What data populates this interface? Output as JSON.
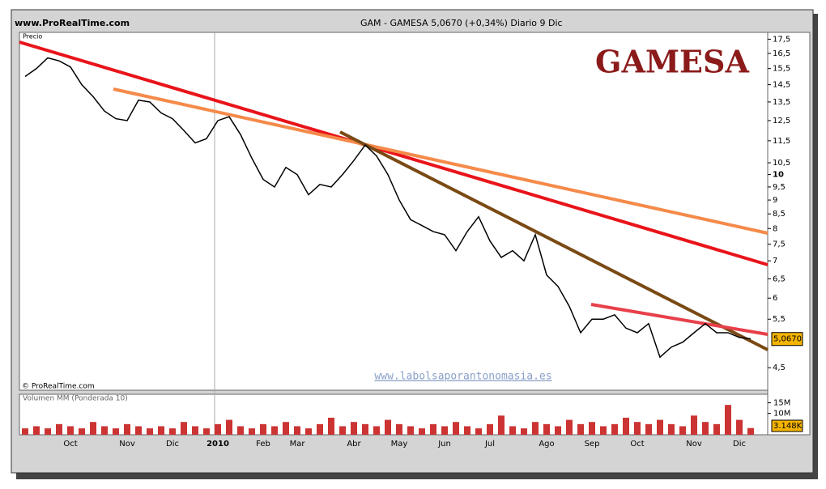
{
  "chart_data": {
    "type": "line",
    "source": "www.ProRealTime.com",
    "title": "GAM - GAMESA   5,0670 (+0,34%)   Diario  9 Dic",
    "y_label": "Precio",
    "logo": "GAMESA",
    "copyright": "© ProRealTime.com",
    "watermark": "www.labolsaporantonomasia.es",
    "categories": [
      null,
      null,
      null,
      null,
      "Oct",
      null,
      null,
      null,
      null,
      "Nov",
      null,
      null,
      null,
      "Dic",
      null,
      null,
      null,
      "2010",
      null,
      null,
      null,
      "Feb",
      null,
      null,
      "Mar",
      null,
      null,
      null,
      null,
      "Abr",
      null,
      null,
      null,
      "May",
      null,
      null,
      null,
      "Jun",
      null,
      null,
      null,
      "Jul",
      null,
      null,
      null,
      null,
      "Ago",
      null,
      null,
      null,
      "Sep",
      null,
      null,
      null,
      "Oct",
      null,
      null,
      null,
      null,
      "Nov",
      null,
      null,
      null,
      "Dic",
      null,
      null
    ],
    "values": [
      15.0,
      15.5,
      16.2,
      16.0,
      15.6,
      14.5,
      13.8,
      13.0,
      12.6,
      12.5,
      13.6,
      13.5,
      12.9,
      12.6,
      12.0,
      11.4,
      11.6,
      12.5,
      12.7,
      11.8,
      10.7,
      9.8,
      9.5,
      10.3,
      10.0,
      9.2,
      9.6,
      9.5,
      10.0,
      10.6,
      11.3,
      10.8,
      10.0,
      9.0,
      8.3,
      8.1,
      7.9,
      7.8,
      7.3,
      7.9,
      8.4,
      7.6,
      7.1,
      7.3,
      7.0,
      7.8,
      6.6,
      6.3,
      5.8,
      5.2,
      5.5,
      5.5,
      5.6,
      5.3,
      5.2,
      5.4,
      4.7,
      4.9,
      5.0,
      5.2,
      5.4,
      5.2,
      5.2,
      5.1,
      5.07,
      null
    ],
    "color": "#000000",
    "log_scale": true,
    "ylim": [
      4.1,
      18
    ],
    "yticks": [
      {
        "value": 17.5,
        "label": "17,5"
      },
      {
        "value": 16.5,
        "label": "16,5"
      },
      {
        "value": 15.5,
        "label": "15,5"
      },
      {
        "value": 14.5,
        "label": "14,5"
      },
      {
        "value": 13.5,
        "label": "13,5"
      },
      {
        "value": 12.5,
        "label": "12,5"
      },
      {
        "value": 11.5,
        "label": "11,5"
      },
      {
        "value": 10.5,
        "label": "10,5"
      },
      10,
      {
        "value": 9.5,
        "label": "9,5"
      },
      9,
      {
        "value": 8.5,
        "label": "8,5"
      },
      8,
      {
        "value": 7.5,
        "label": "7,5"
      },
      7,
      {
        "value": 6.5,
        "label": "6,5"
      },
      6,
      {
        "value": 5.5,
        "label": "5,5"
      },
      {
        "value": 4.5,
        "label": "4,5"
      }
    ],
    "last": {
      "value": 5.067,
      "label": "5,0670"
    },
    "volume": {
      "title": "Volumen MM (Ponderada 10)",
      "color": "#cc3333",
      "values": [
        3,
        4,
        3,
        5,
        4,
        3,
        6,
        4,
        3,
        5,
        4,
        3,
        4,
        3,
        6,
        4,
        3,
        5,
        7,
        4,
        3,
        5,
        4,
        6,
        4,
        3,
        5,
        8,
        4,
        6,
        5,
        4,
        7,
        5,
        4,
        3,
        5,
        4,
        6,
        4,
        3,
        5,
        9,
        4,
        3,
        6,
        5,
        4,
        7,
        5,
        6,
        4,
        5,
        8,
        6,
        5,
        7,
        5,
        4,
        9,
        6,
        5,
        14,
        7,
        3.148,
        null
      ],
      "ylim": [
        0,
        19
      ],
      "yticks": [
        {
          "value": 15,
          "label": "15M"
        },
        {
          "value": 10,
          "label": "10M"
        }
      ],
      "last_label": "3.148K"
    }
  }
}
